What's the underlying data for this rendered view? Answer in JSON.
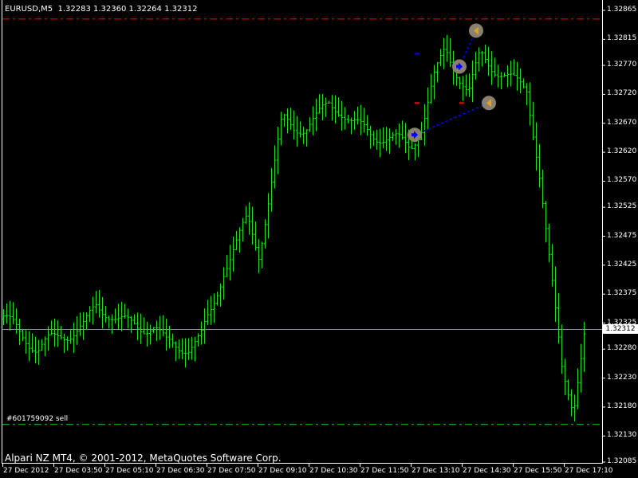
{
  "header": {
    "symbol": "EURUSD,M5",
    "ohlc": "1.32283 1.32360 1.32264 1.32312"
  },
  "footer": {
    "copyright": "Alpari NZ MT4, © 2001-2012, MetaQuotes Software Corp."
  },
  "order": {
    "label": "#601759092 sell",
    "stop_loss": 1.3285,
    "take_profit": 1.3215
  },
  "current_price": "1.32312",
  "price_axis": [
    "1.32865",
    "1.32815",
    "1.32770",
    "1.32720",
    "1.32670",
    "1.32620",
    "1.32570",
    "1.32525",
    "1.32475",
    "1.32425",
    "1.32375",
    "1.32325",
    "1.32280",
    "1.32230",
    "1.32180",
    "1.32130",
    "1.32085"
  ],
  "time_axis": [
    "27 Dec 2012",
    "27 Dec 03:50",
    "27 Dec 05:10",
    "27 Dec 06:30",
    "27 Dec 07:50",
    "27 Dec 09:10",
    "27 Dec 10:30",
    "27 Dec 11:50",
    "27 Dec 13:10",
    "27 Dec 14:30",
    "27 Dec 15:50",
    "27 Dec 17:10"
  ],
  "colors": {
    "background": "#000000",
    "bars": "#22dd22",
    "axis": "#ffffff",
    "grid_price_line": "#8899aa",
    "stop_loss": "#ff0000",
    "take_profit": "#22cc22",
    "trade_line": "#0000ff",
    "buy_marker": "#0000ff",
    "close_marker": "#e0a020"
  },
  "close_path": [
    1.32333,
    1.3232,
    1.323,
    1.32278,
    1.32295,
    1.32305,
    1.3231,
    1.3232,
    1.32355,
    1.32345,
    1.3233,
    1.32322,
    1.32318,
    1.32322,
    1.3229,
    1.32285,
    1.32285,
    1.323,
    1.3235,
    1.3242,
    1.3246,
    1.32505,
    1.32445,
    1.3256,
    1.32677,
    1.32663,
    1.32665,
    1.3268,
    1.32704,
    1.32695,
    1.3267,
    1.3266,
    1.3265,
    1.32645,
    1.3264,
    1.3263,
    1.32665,
    1.32745,
    1.328,
    1.3276,
    1.3272,
    1.3279,
    1.3277,
    1.32755,
    1.3274,
    1.3273,
    1.326,
    1.3242,
    1.3225,
    1.3218,
    1.32312
  ],
  "trades": [
    {
      "type": "buy",
      "open_price": 1.3265,
      "close_price": 1.32705
    },
    {
      "type": "buy",
      "open_price": 1.32768,
      "close_price": 1.3283
    }
  ]
}
